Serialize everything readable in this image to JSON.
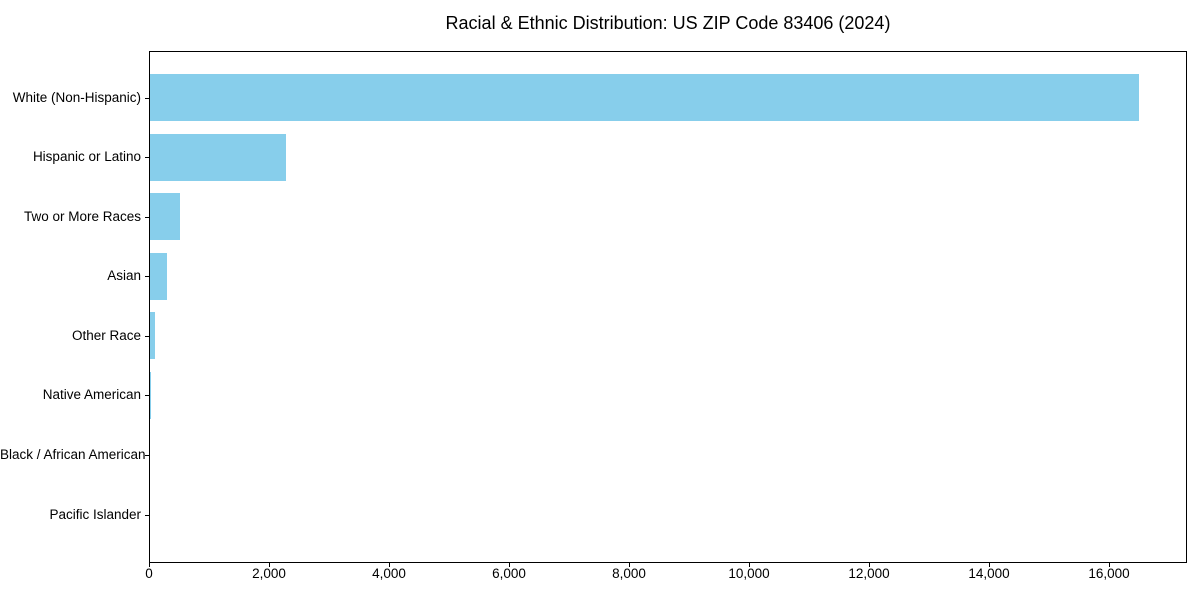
{
  "chart_data": {
    "type": "bar",
    "orientation": "horizontal",
    "title": "Racial & Ethnic Distribution: US ZIP Code 83406 (2024)",
    "categories": [
      "White (Non-Hispanic)",
      "Hispanic or Latino",
      "Two or More Races",
      "Asian",
      "Other Race",
      "Native American",
      "Black / African American",
      "Pacific Islander"
    ],
    "values": [
      16480,
      2270,
      505,
      285,
      90,
      20,
      0,
      0
    ],
    "xlabel": "",
    "ylabel": "",
    "xlim": [
      0,
      17300
    ],
    "x_ticks": {
      "values": [
        0,
        2000,
        4000,
        6000,
        8000,
        10000,
        12000,
        14000,
        16000
      ],
      "labels": [
        "0",
        "2,000",
        "4,000",
        "6,000",
        "8,000",
        "10,000",
        "12,000",
        "14,000",
        "16,000"
      ]
    },
    "grid": false,
    "legend": "none",
    "bar_color": "#87CEEB",
    "axis_color": "#000000",
    "text_color": "#000000",
    "background_color": "#ffffff"
  }
}
